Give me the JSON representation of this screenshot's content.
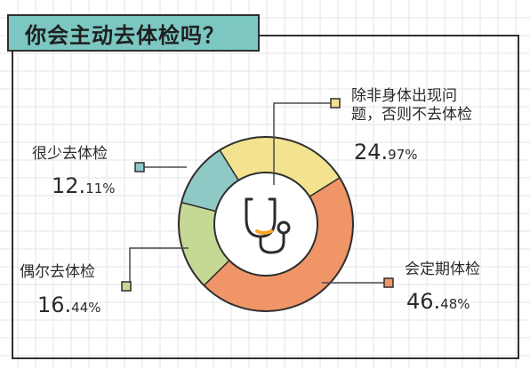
{
  "title": "你会主动去体检吗？",
  "colors": {
    "grid": "#e6e6e6",
    "frame": "#2f2f2f",
    "title_bg": "#7cc7c1",
    "leader": "#4a4a4a",
    "center_bg": "#ffffff",
    "icon_stroke": "#2b2b2b",
    "icon_accent": "#f5a623"
  },
  "center_icon": "stethoscope-icon",
  "chart_data": {
    "type": "pie",
    "donut": true,
    "categories": [
      "除非身体出现问题，否则不去体检",
      "会定期体检",
      "偶尔去体检",
      "很少去体检"
    ],
    "values": [
      24.97,
      46.48,
      16.44,
      12.11
    ],
    "colors": [
      "#f3e28f",
      "#ef9567",
      "#c6d994",
      "#8ec9c6"
    ],
    "percent_labels": [
      {
        "int": "24.",
        "dec": "97%"
      },
      {
        "int": "46.",
        "dec": "48%"
      },
      {
        "int": "16.",
        "dec": "44%"
      },
      {
        "int": "12.",
        "dec": "11%"
      }
    ]
  }
}
